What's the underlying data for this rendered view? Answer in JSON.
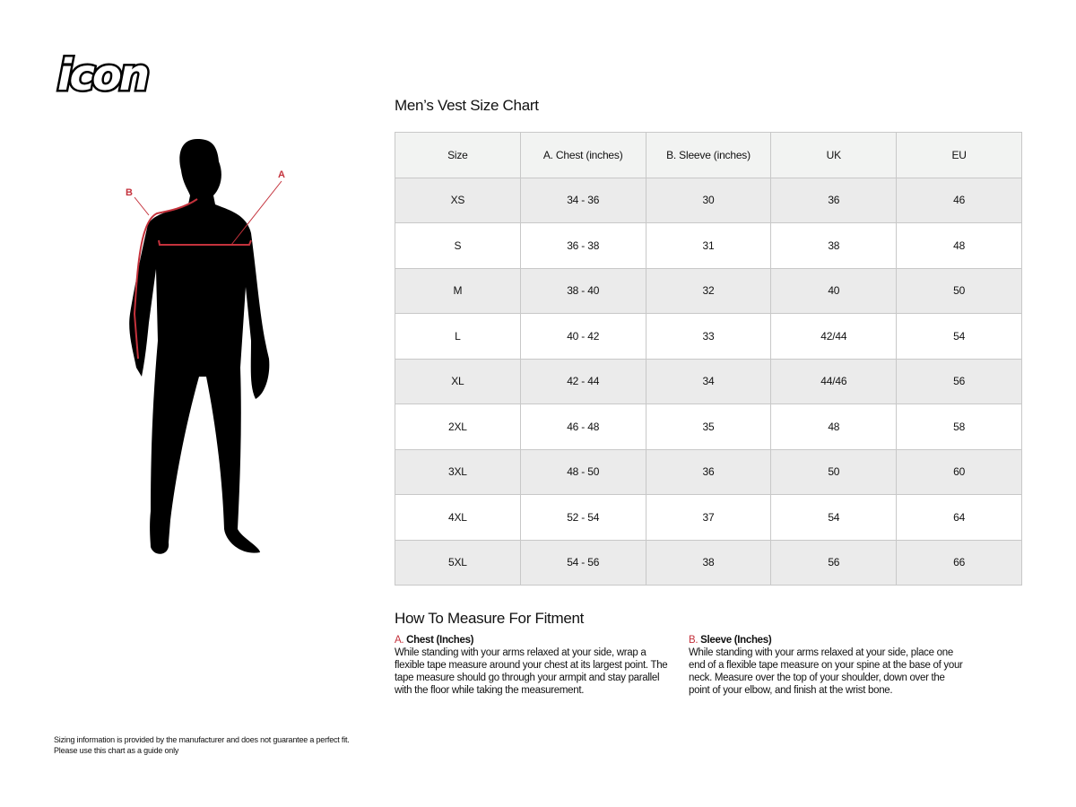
{
  "logo": {
    "text": "icon"
  },
  "figure": {
    "label_a": "A",
    "label_b": "B",
    "accent": "#c4323c"
  },
  "title": "Men’s Vest Size Chart",
  "table": {
    "headers": [
      "Size",
      "A. Chest (inches)",
      "B. Sleeve (inches)",
      "UK",
      "EU"
    ],
    "rows": [
      [
        "XS",
        "34 - 36",
        "30",
        "36",
        "46"
      ],
      [
        "S",
        "36 - 38",
        "31",
        "38",
        "48"
      ],
      [
        "M",
        "38 - 40",
        "32",
        "40",
        "50"
      ],
      [
        "L",
        "40 - 42",
        "33",
        "42/44",
        "54"
      ],
      [
        "XL",
        "42 - 44",
        "34",
        "44/46",
        "56"
      ],
      [
        "2XL",
        "46 - 48",
        "35",
        "48",
        "58"
      ],
      [
        "3XL",
        "48 - 50",
        "36",
        "50",
        "60"
      ],
      [
        "4XL",
        "52 - 54",
        "37",
        "54",
        "64"
      ],
      [
        "5XL",
        "54 - 56",
        "38",
        "56",
        "66"
      ]
    ]
  },
  "howto": {
    "title": "How To Measure For Fitment",
    "a": {
      "letter": "A.",
      "heading": "Chest (Inches)",
      "text": "While standing with your arms relaxed at your side, wrap a flexible tape measure around your chest at its largest point. The tape measure should go through your armpit and stay parallel with the floor while taking the measurement."
    },
    "b": {
      "letter": "B.",
      "heading": "Sleeve (Inches)",
      "text": "While standing with your arms relaxed at your side, place one end of a flexible tape measure on your spine at the base of your neck. Measure over the top of your shoulder, down over the point of your elbow, and finish at the wrist bone."
    }
  },
  "note": {
    "line1": "Sizing information is provided by the manufacturer and does not guarantee a perfect fit.",
    "line2": "Please use this chart as a guide only"
  }
}
